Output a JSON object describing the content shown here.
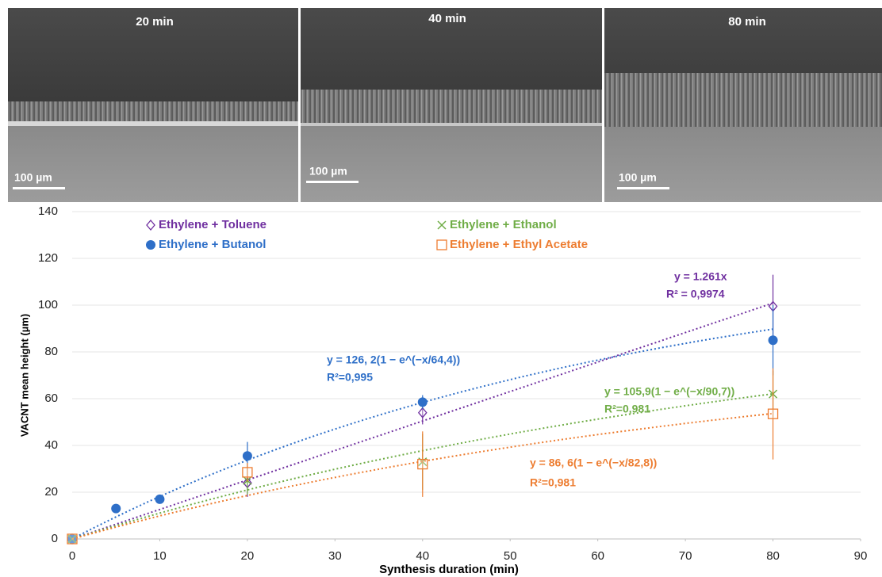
{
  "panels": [
    {
      "label": "20 min",
      "scale": "100 µm"
    },
    {
      "label": "40 min",
      "scale": "100 µm"
    },
    {
      "label": "80 min",
      "scale": "100 µm"
    }
  ],
  "chart_data": {
    "type": "scatter",
    "x_label": "Synthesis duration (min)",
    "y_label": "VACNT mean height (µm)",
    "xlim": [
      0,
      90
    ],
    "xticks": [
      0,
      10,
      20,
      30,
      40,
      50,
      60,
      70,
      80,
      90
    ],
    "ylim": [
      0,
      140
    ],
    "yticks": [
      0,
      20,
      40,
      60,
      80,
      100,
      120,
      140
    ],
    "grid": true,
    "series": [
      {
        "name": "Ethylene + Toluene",
        "color": "#7030a0",
        "marker": "diamond",
        "x": [
          0,
          20,
          40,
          80
        ],
        "values": [
          0,
          24,
          54,
          99.5
        ],
        "errors": [
          null,
          6,
          5,
          13.5
        ],
        "fit": {
          "model": "linear",
          "a": 1.261
        },
        "equation": "y = 1.261x",
        "r2": "R² = 0,9974"
      },
      {
        "name": "Ethylene + Butanol",
        "color": "#2e6fc8",
        "marker": "circle",
        "x": [
          0,
          5,
          10,
          20,
          40,
          80
        ],
        "values": [
          0,
          13,
          17,
          35.5,
          58.5,
          85
        ],
        "errors": [
          null,
          null,
          null,
          6,
          3,
          15
        ],
        "fit": {
          "model": "exp",
          "a": 126.2,
          "tau": 64.4
        },
        "equation": "y = 126, 2(1 − e^(−x/64,4))",
        "r2": "R²=0,995"
      },
      {
        "name": "Ethylene + Ethanol",
        "color": "#70ad47",
        "marker": "cross",
        "x": [
          0,
          20,
          40,
          80
        ],
        "values": [
          0,
          25,
          33,
          62
        ],
        "errors": [
          null,
          6,
          12,
          10
        ],
        "fit": {
          "model": "exp",
          "a": 105.9,
          "tau": 90.7
        },
        "equation": "y = 105,9(1 − e^(−x/90,7))",
        "r2": "R²=0,981"
      },
      {
        "name": "Ethylene + Ethyl Acetate",
        "color": "#ed7d31",
        "marker": "square",
        "x": [
          0,
          20,
          40,
          80
        ],
        "values": [
          0,
          28.5,
          32,
          53.5
        ],
        "errors": [
          null,
          4,
          14,
          19.5
        ],
        "fit": {
          "model": "exp",
          "a": 86.6,
          "tau": 82.8
        },
        "equation": "y = 86, 6(1 − e^(−x/82,8))",
        "r2": "R²=0,981"
      }
    ]
  }
}
